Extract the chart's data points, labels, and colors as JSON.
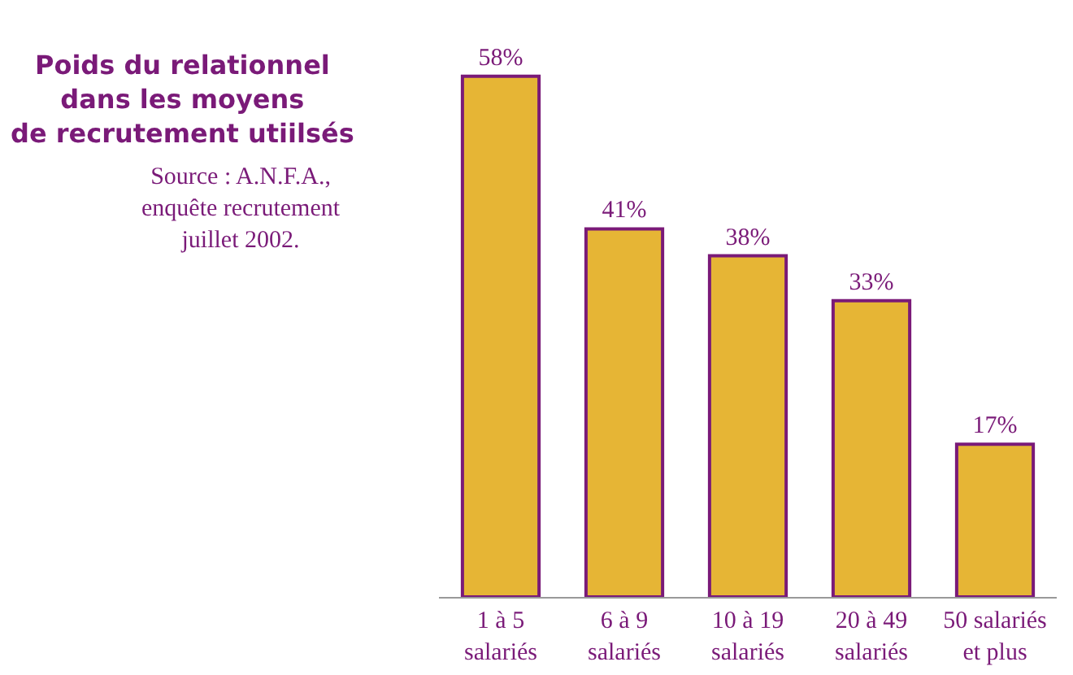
{
  "chart_data": {
    "type": "bar",
    "title": "Poids du relationnel\ndans les moyens\nde recrutement utiilsés",
    "annotations": [
      "Source : A.N.F.A.,\nenquête recrutement\njuillet 2002."
    ],
    "categories": [
      "1 à 5\nsalariés",
      "6 à 9\nsalariés",
      "10 à 19\nsalariés",
      "20 à 49\nsalariés",
      "50 salariés\net plus"
    ],
    "values": [
      58,
      41,
      38,
      33,
      17
    ],
    "value_labels": [
      "58%",
      "41%",
      "38%",
      "33%",
      "17%"
    ],
    "color": "#e6b535"
  }
}
